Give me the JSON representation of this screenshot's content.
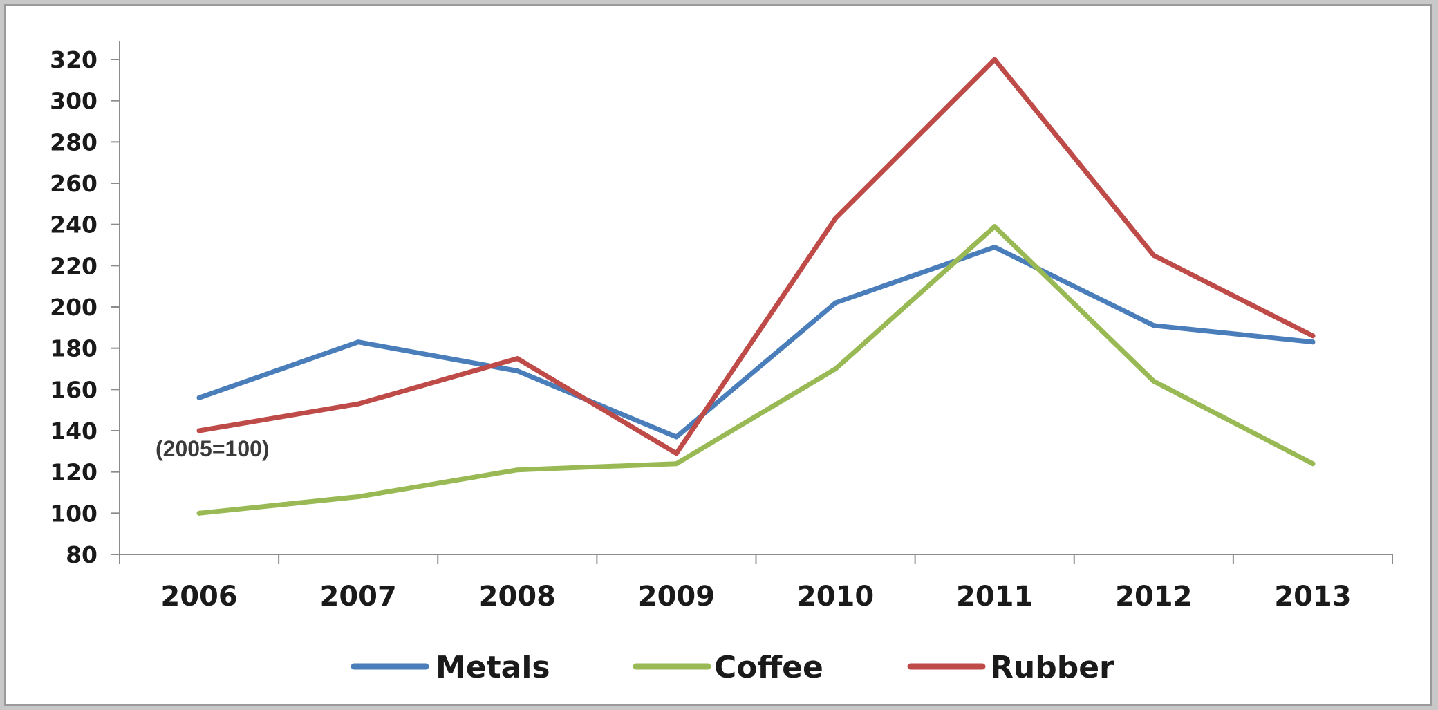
{
  "chart_data": {
    "type": "line",
    "title": "",
    "xlabel": "",
    "ylabel": "",
    "annotation": "(2005=100)",
    "categories": [
      "2006",
      "2007",
      "2008",
      "2009",
      "2010",
      "2011",
      "2012",
      "2013"
    ],
    "ylim": [
      80,
      320
    ],
    "yticks": [
      80,
      100,
      120,
      140,
      160,
      180,
      200,
      220,
      240,
      260,
      280,
      300,
      320
    ],
    "grid": false,
    "legend_position": "bottom",
    "series": [
      {
        "name": "Metals",
        "color": "#4a7ebb",
        "values": [
          156,
          183,
          169,
          137,
          202,
          229,
          191,
          183
        ]
      },
      {
        "name": "Coffee",
        "color": "#98b954",
        "values": [
          100,
          108,
          121,
          124,
          170,
          239,
          164,
          124
        ]
      },
      {
        "name": "Rubber",
        "color": "#be4b48",
        "values": [
          140,
          153,
          175,
          129,
          243,
          320,
          225,
          186
        ]
      }
    ]
  }
}
